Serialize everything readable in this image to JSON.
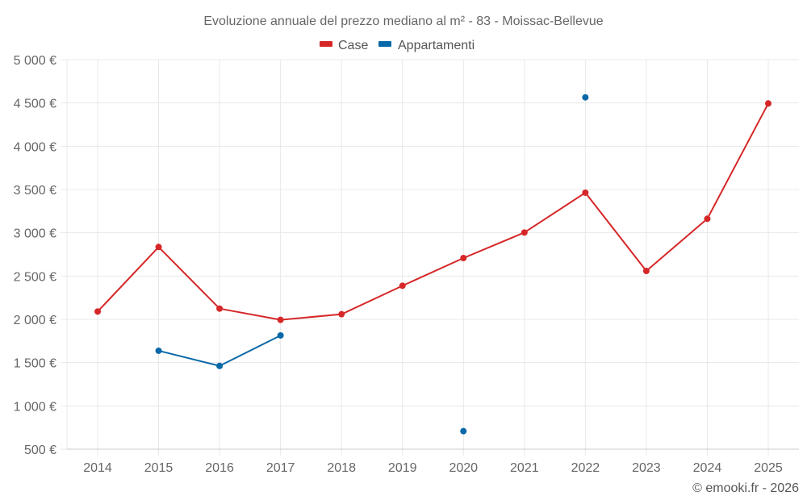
{
  "chart_data": {
    "type": "line",
    "title": "Evoluzione annuale del prezzo mediano al m² - 83 - Moissac-Bellevue",
    "xlabel": "",
    "ylabel": "",
    "categories": [
      "2014",
      "2015",
      "2016",
      "2017",
      "2018",
      "2019",
      "2020",
      "2021",
      "2022",
      "2023",
      "2024",
      "2025"
    ],
    "ylim": [
      500,
      5000
    ],
    "y_ticks": [
      500,
      1000,
      1500,
      2000,
      2500,
      3000,
      3500,
      4000,
      4500,
      5000
    ],
    "y_tick_labels": [
      "500 €",
      "1 000 €",
      "1 500 €",
      "2 000 €",
      "2 500 €",
      "3 000 €",
      "3 500 €",
      "4 000 €",
      "4 500 €",
      "5 000 €"
    ],
    "grid": true,
    "legend_position": "top",
    "series": [
      {
        "name": "Case",
        "color": "#d62728",
        "values": [
          2090,
          2836,
          2124,
          1994,
          2059,
          2388,
          2708,
          3003,
          3463,
          2559,
          3162,
          4494
        ]
      },
      {
        "name": "Appartamenti",
        "color": "#0868a8",
        "values": [
          null,
          1637,
          1462,
          1814,
          null,
          null,
          708,
          null,
          4565,
          null,
          null,
          null
        ]
      }
    ],
    "credit": "© emooki.fr - 2026"
  }
}
